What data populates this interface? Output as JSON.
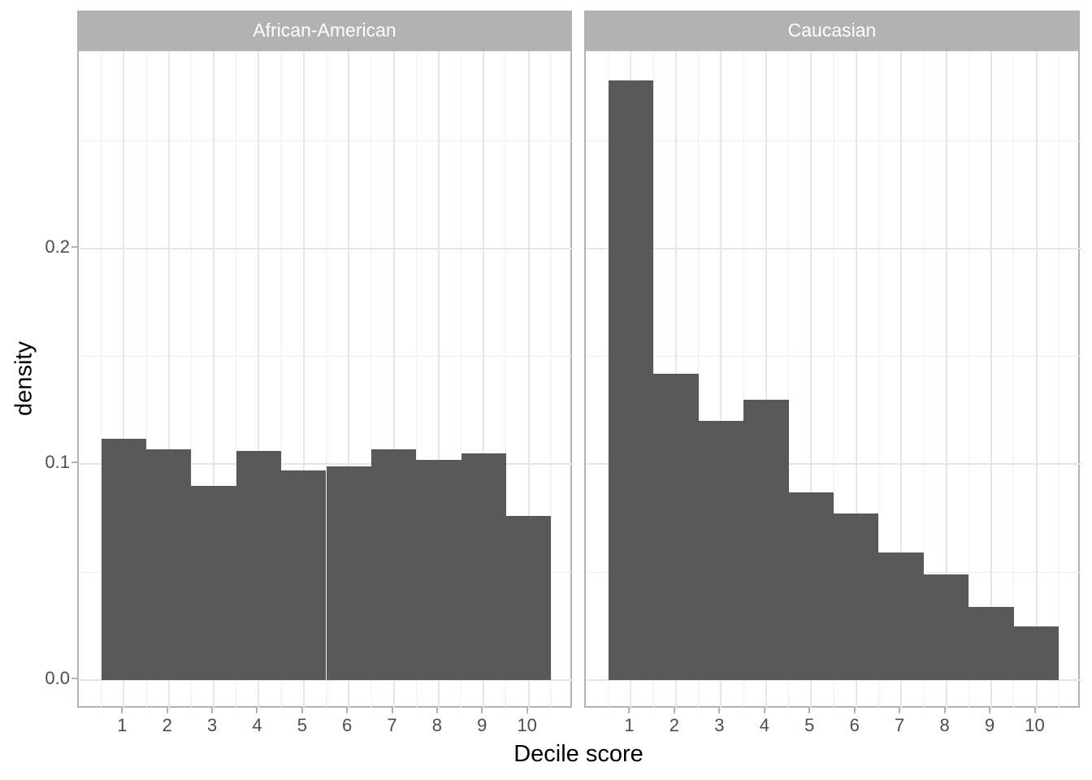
{
  "figure_background": "#ffffff",
  "chart_data": {
    "type": "bar",
    "subtype": "faceted-density-histogram",
    "title": "",
    "facets": [
      {
        "label": "African-American",
        "densities": [
          0.112,
          0.107,
          0.09,
          0.106,
          0.097,
          0.099,
          0.107,
          0.102,
          0.105,
          0.076
        ]
      },
      {
        "label": "Caucasian",
        "densities": [
          0.278,
          0.142,
          0.12,
          0.13,
          0.087,
          0.077,
          0.059,
          0.049,
          0.034,
          0.025
        ]
      }
    ],
    "categories": [
      1,
      2,
      3,
      4,
      5,
      6,
      7,
      8,
      9,
      10
    ],
    "bar_width": 1,
    "x_axis": {
      "title": "Decile score",
      "tick_labels": [
        "1",
        "2",
        "3",
        "4",
        "5",
        "6",
        "7",
        "8",
        "9",
        "10"
      ],
      "major_breaks": [
        1,
        2,
        3,
        4,
        5,
        6,
        7,
        8,
        9,
        10
      ],
      "minor_breaks": [
        0.5,
        1.5,
        2.5,
        3.5,
        4.5,
        5.5,
        6.5,
        7.5,
        8.5,
        9.5,
        10.5
      ],
      "range": [
        0,
        11
      ]
    },
    "y_axis": {
      "title": "density",
      "tick_labels": [
        "0.0",
        "0.1",
        "0.2"
      ],
      "major_breaks": [
        0.0,
        0.1,
        0.2
      ],
      "minor_breaks": [
        0.05,
        0.15,
        0.25
      ],
      "range": [
        -0.0136,
        0.2915
      ]
    },
    "legend": "none",
    "grid": "on",
    "style": {
      "bar_fill": "#595959",
      "strip_background": "#b2b2b2",
      "strip_text_color": "#ffffff",
      "panel_border_color": "#b3b3b3",
      "grid_major_color": "#e6e6e6",
      "grid_minor_color": "#f0f0f0",
      "tick_mark_color": "#b3b3b3",
      "tick_label_color": "#4d4d4d",
      "axis_title_color": "#000000"
    }
  }
}
